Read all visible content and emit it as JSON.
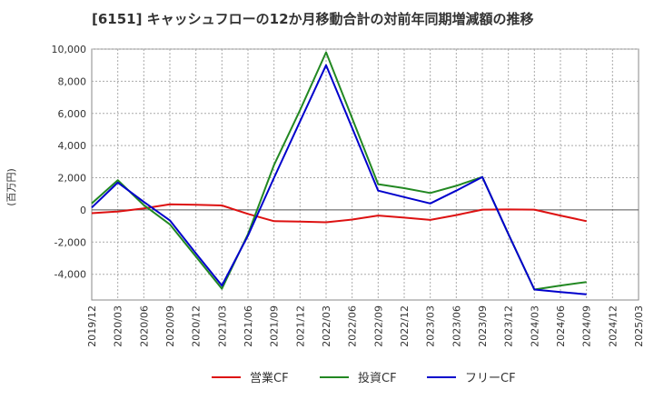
{
  "chart_data": {
    "type": "line",
    "title": "[6151]  キャッシュフローの12か月移動合計の対前年同期増減額の推移",
    "ylabel": "(百万円)",
    "xlabel": "",
    "ylim": [
      -5600,
      10000
    ],
    "yticks": [
      10000,
      8000,
      6000,
      4000,
      2000,
      0,
      -2000,
      -4000
    ],
    "ytick_labels": [
      "10,000",
      "8,000",
      "6,000",
      "4,000",
      "2,000",
      "0",
      "-2,000",
      "-4,000"
    ],
    "categories": [
      "2019/12",
      "2020/03",
      "2020/06",
      "2020/09",
      "2020/12",
      "2021/03",
      "2021/06",
      "2021/09",
      "2021/12",
      "2022/03",
      "2022/06",
      "2022/09",
      "2022/12",
      "2023/03",
      "2023/06",
      "2023/09",
      "2023/12",
      "2024/03",
      "2024/06",
      "2024/09",
      "2024/12",
      "2025/03"
    ],
    "series": [
      {
        "name": "営業CF",
        "color": "#dd1111",
        "values": [
          -200,
          -100,
          100,
          350,
          320,
          280,
          -250,
          -700,
          -730,
          -770,
          -600,
          -350,
          -480,
          -620,
          -320,
          20,
          30,
          20,
          -350,
          -700,
          null,
          null
        ]
      },
      {
        "name": "投資CF",
        "color": "#228822",
        "values": [
          400,
          1850,
          300,
          -900,
          -2900,
          -4900,
          -1500,
          2800,
          6200,
          9800,
          5700,
          1600,
          1350,
          1050,
          1500,
          2050,
          -1500,
          -4950,
          -4700,
          -4480,
          null,
          null
        ]
      },
      {
        "name": "フリーCF",
        "color": "#0000cc",
        "values": [
          150,
          1700,
          500,
          -650,
          -2700,
          -4700,
          -1600,
          2000,
          5500,
          9000,
          5100,
          1200,
          800,
          400,
          1200,
          2050,
          -1500,
          -4950,
          -5100,
          -5250,
          null,
          null
        ]
      }
    ],
    "legend_position": "bottom",
    "grid": true
  }
}
